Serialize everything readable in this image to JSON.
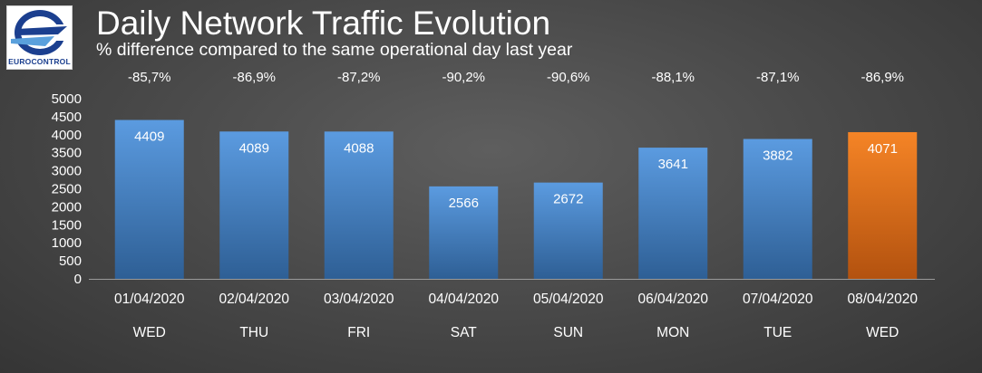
{
  "logo": {
    "text": "EUROCONTROL"
  },
  "header": {
    "title": "Daily Network Traffic Evolution",
    "subtitle": "% difference compared to the same operational day last year"
  },
  "colors": {
    "bar_top": "#5b9be0",
    "bar_bottom": "#2e5f95",
    "highlight_top": "#f58426",
    "highlight_bottom": "#b3520f",
    "axis_line": "#9a9a9a"
  },
  "chart_data": {
    "type": "bar",
    "categories": [
      "01/04/2020",
      "02/04/2020",
      "03/04/2020",
      "04/04/2020",
      "05/04/2020",
      "06/04/2020",
      "07/04/2020",
      "08/04/2020"
    ],
    "weekdays": [
      "WED",
      "THU",
      "FRI",
      "SAT",
      "SUN",
      "MON",
      "TUE",
      "WED"
    ],
    "values": [
      4409,
      4089,
      4088,
      2566,
      2672,
      3641,
      3882,
      4071
    ],
    "value_labels": [
      "4409",
      "4089",
      "4088",
      "2566",
      "2672",
      "3641",
      "3882",
      "4071"
    ],
    "pct_change": [
      "-85,7%",
      "-86,9%",
      "-87,2%",
      "-90,2%",
      "-90,6%",
      "-88,1%",
      "-87,1%",
      "-86,9%"
    ],
    "highlight_index": 7,
    "ylim": [
      0,
      5000
    ],
    "yticks": [
      0,
      500,
      1000,
      1500,
      2000,
      2500,
      3000,
      3500,
      4000,
      4500,
      5000
    ],
    "grid": false,
    "legend": "none"
  }
}
